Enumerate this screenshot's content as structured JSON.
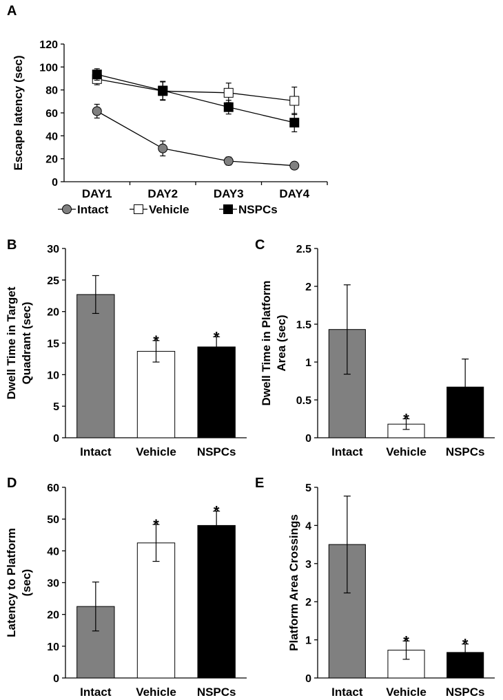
{
  "chart_data": [
    {
      "panel": "A",
      "type": "line",
      "categories": [
        "DAY1",
        "DAY2",
        "DAY3",
        "DAY4"
      ],
      "ylabel": "Escape latency (sec)",
      "ylim": [
        0,
        120
      ],
      "yticks": [
        0,
        20,
        40,
        60,
        80,
        100,
        120
      ],
      "series": [
        {
          "name": "Intact",
          "marker": "circle",
          "color": "#808080",
          "values": [
            61.5,
            29,
            18,
            14
          ],
          "err": [
            6,
            6.5,
            3.5,
            3
          ]
        },
        {
          "name": "Vehicle",
          "marker": "square-open",
          "color": "#ffffff",
          "values": [
            89.5,
            79,
            77.5,
            70.5
          ],
          "err": [
            5,
            8,
            8.5,
            12
          ]
        },
        {
          "name": "NSPCs",
          "marker": "square",
          "color": "#000000",
          "values": [
            93.5,
            79.5,
            65,
            51.5
          ],
          "err": [
            5,
            8,
            6,
            8
          ]
        }
      ],
      "legend": "bottom"
    },
    {
      "panel": "B",
      "type": "bar",
      "categories": [
        "Intact",
        "Vehicle",
        "NSPCs"
      ],
      "values": [
        22.7,
        13.7,
        14.4
      ],
      "err": [
        3.0,
        1.7,
        1.6
      ],
      "colors": [
        "#808080",
        "#ffffff",
        "#000000"
      ],
      "stars": [
        "",
        "*",
        "*"
      ],
      "ylabel_lines": [
        "Dwell Time in Target",
        "Quadrant (sec)"
      ],
      "ylim": [
        0,
        30
      ],
      "yticks": [
        "0",
        "5",
        "10",
        "15",
        "20",
        "25",
        "30"
      ]
    },
    {
      "panel": "C",
      "type": "bar",
      "categories": [
        "Intact",
        "Vehicle",
        "NSPCs"
      ],
      "values": [
        1.43,
        0.18,
        0.67
      ],
      "err": [
        0.59,
        0.07,
        0.37
      ],
      "colors": [
        "#808080",
        "#ffffff",
        "#000000"
      ],
      "stars": [
        "",
        "*",
        ""
      ],
      "ylabel_lines": [
        "Dwell Time in Platform",
        "Area (sec)"
      ],
      "ylim": [
        0,
        2.5
      ],
      "yticks": [
        "0",
        "0.5",
        "1",
        "1.5",
        "2",
        "2.5"
      ]
    },
    {
      "panel": "D",
      "type": "bar",
      "categories": [
        "Intact",
        "Vehicle",
        "NSPCs"
      ],
      "values": [
        22.5,
        42.5,
        48.0
      ],
      "err": [
        7.7,
        5.8,
        4.5
      ],
      "colors": [
        "#808080",
        "#ffffff",
        "#000000"
      ],
      "stars": [
        "",
        "*",
        "*"
      ],
      "ylabel_lines": [
        "Latency to Platform",
        "(sec)"
      ],
      "ylim": [
        0,
        60
      ],
      "yticks": [
        "0",
        "10",
        "20",
        "30",
        "40",
        "50",
        "60"
      ]
    },
    {
      "panel": "E",
      "type": "bar",
      "categories": [
        "Intact",
        "Vehicle",
        "NSPCs"
      ],
      "values": [
        3.5,
        0.73,
        0.67
      ],
      "err": [
        1.27,
        0.24,
        0.22
      ],
      "colors": [
        "#808080",
        "#ffffff",
        "#000000"
      ],
      "stars": [
        "",
        "*",
        "*"
      ],
      "ylabel_lines": [
        "Platform Area Crossings"
      ],
      "ylim": [
        0,
        5
      ],
      "yticks": [
        "0",
        "1",
        "2",
        "3",
        "4",
        "5"
      ]
    }
  ]
}
